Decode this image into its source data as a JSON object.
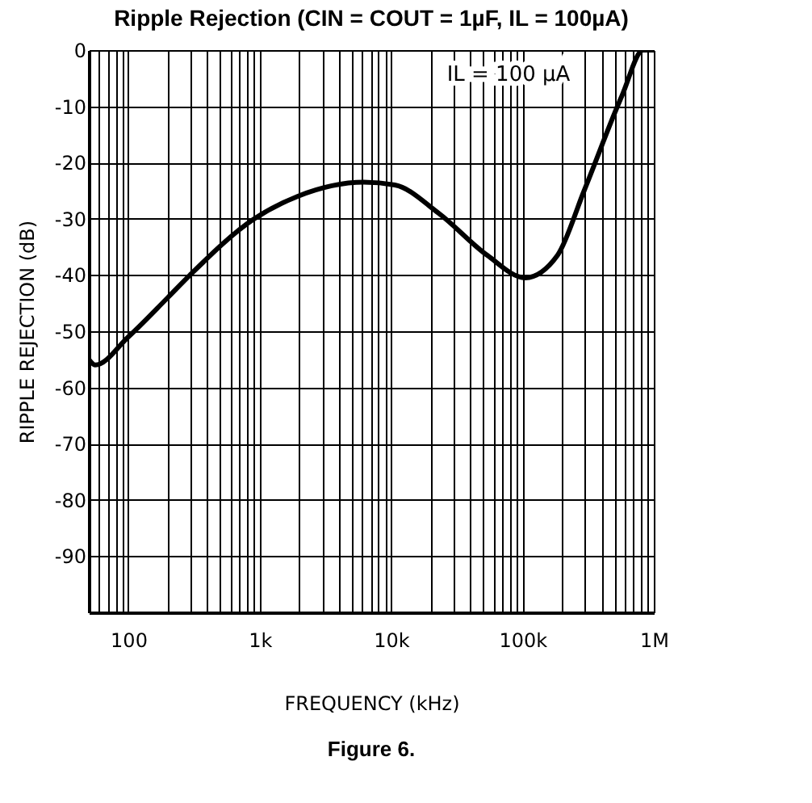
{
  "chart_data": {
    "type": "line",
    "title": "Ripple Rejection (CIN = COUT = 1µF, IL = 100µA)",
    "xlabel": "FREQUENCY (kHz)",
    "ylabel": "RIPPLE REJECTION (dB)",
    "annotations": [
      "IL  =  100 μA",
      "Figure 6."
    ],
    "log": "x",
    "grid": true,
    "marker": "none",
    "line_style": "solid",
    "xlim": [
      50,
      1000000
    ],
    "ylim": [
      -100,
      0
    ],
    "xticks": [
      {
        "value": 50,
        "label": null
      },
      {
        "value": 60,
        "label": null
      },
      {
        "value": 70,
        "label": null
      },
      {
        "value": 80,
        "label": null
      },
      {
        "value": 90,
        "label": null
      },
      100,
      {
        "value": 200,
        "label": null
      },
      {
        "value": 300,
        "label": null
      },
      {
        "value": 400,
        "label": null
      },
      {
        "value": 500,
        "label": null
      },
      {
        "value": 600,
        "label": null
      },
      {
        "value": 700,
        "label": null
      },
      {
        "value": 800,
        "label": null
      },
      {
        "value": 900,
        "label": null
      },
      {
        "value": 1000,
        "label": "1k"
      },
      {
        "value": 2000,
        "label": null
      },
      {
        "value": 3000,
        "label": null
      },
      {
        "value": 4000,
        "label": null
      },
      {
        "value": 5000,
        "label": null
      },
      {
        "value": 6000,
        "label": null
      },
      {
        "value": 7000,
        "label": null
      },
      {
        "value": 8000,
        "label": null
      },
      {
        "value": 9000,
        "label": null
      },
      {
        "value": 10000,
        "label": "10k"
      },
      {
        "value": 20000,
        "label": null
      },
      {
        "value": 30000,
        "label": null
      },
      {
        "value": 40000,
        "label": null
      },
      {
        "value": 50000,
        "label": null
      },
      {
        "value": 60000,
        "label": null
      },
      {
        "value": 70000,
        "label": null
      },
      {
        "value": 80000,
        "label": null
      },
      {
        "value": 90000,
        "label": null
      },
      {
        "value": 100000,
        "label": "100k"
      },
      {
        "value": 200000,
        "label": null
      },
      {
        "value": 300000,
        "label": null
      },
      {
        "value": 400000,
        "label": null
      },
      {
        "value": 500000,
        "label": null
      },
      {
        "value": 600000,
        "label": null
      },
      {
        "value": 700000,
        "label": null
      },
      {
        "value": 800000,
        "label": null
      },
      {
        "value": 900000,
        "label": null
      },
      {
        "value": 1000000,
        "label": "1M"
      }
    ],
    "yticks": [
      {
        "value": -100,
        "label": null
      },
      -90,
      -80,
      -70,
      -60,
      -50,
      -40,
      -30,
      -20,
      -10,
      0
    ],
    "x": [
      50,
      56,
      100,
      200,
      295,
      910,
      1950,
      6200,
      10700,
      23000,
      54000,
      105000,
      185000,
      295000,
      575000,
      830000,
      1000000
    ],
    "series": [
      {
        "color": "#000000",
        "values": [
          -55,
          -56,
          -51,
          -44,
          -40,
          -30,
          -26,
          -23.5,
          -24,
          -29,
          -36.5,
          -40.5,
          -36.5,
          -25,
          -8,
          0,
          0
        ]
      }
    ]
  }
}
